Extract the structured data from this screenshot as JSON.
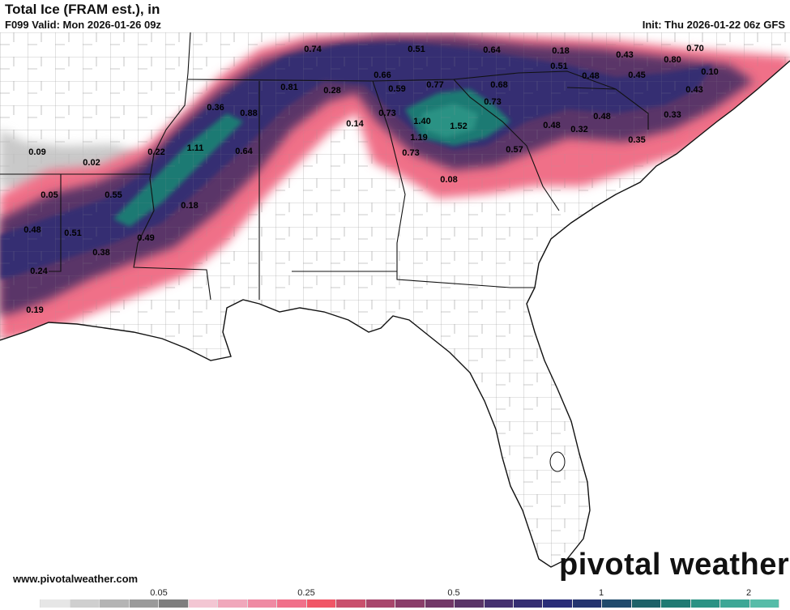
{
  "header": {
    "title": "Total Ice (FRAM est.), in",
    "valid": "F099 Valid: Mon 2026-01-26 09z",
    "init": "Init: Thu 2026-01-22 06z GFS"
  },
  "footer": {
    "url": "www.pivotalweather.com",
    "brand": "pivotal weather"
  },
  "legend": {
    "ticks": [
      "0.05",
      "0.25",
      "0.5",
      "1",
      "2"
    ],
    "colors": [
      "#ffffff",
      "#e6e6e6",
      "#cfcfcf",
      "#b4b4b4",
      "#9a9a9a",
      "#7e7e7e",
      "#f3c6d3",
      "#f0a7bb",
      "#ef8aa3",
      "#f0708a",
      "#f05667",
      "#c9506d",
      "#a8466c",
      "#8a3d6a",
      "#723868",
      "#5a3568",
      "#453170",
      "#352e72",
      "#292d78",
      "#24346f",
      "#1f4a6c",
      "#1d6269",
      "#1f7a73",
      "#2a9284",
      "#3da796",
      "#56bca8"
    ],
    "nodata_color": "#ffffff"
  },
  "map_values": [
    {
      "v": "0.74"
    },
    {
      "v": "0.51"
    },
    {
      "v": "0.64"
    },
    {
      "v": "0.18"
    },
    {
      "v": "0.43"
    },
    {
      "v": "0.70"
    },
    {
      "v": "0.80"
    },
    {
      "v": "0.10"
    },
    {
      "v": "0.51"
    },
    {
      "v": "0.66"
    },
    {
      "v": "0.77"
    },
    {
      "v": "0.68"
    },
    {
      "v": "0.48"
    },
    {
      "v": "0.45"
    },
    {
      "v": "0.43"
    },
    {
      "v": "0.81"
    },
    {
      "v": "0.28"
    },
    {
      "v": "0.59"
    },
    {
      "v": "0.73"
    },
    {
      "v": "0.36"
    },
    {
      "v": "0.88"
    },
    {
      "v": "0.73"
    },
    {
      "v": "1.40"
    },
    {
      "v": "1.52"
    },
    {
      "v": "0.14"
    },
    {
      "v": "1.19"
    },
    {
      "v": "0.48"
    },
    {
      "v": "0.32"
    },
    {
      "v": "0.48"
    },
    {
      "v": "0.33"
    },
    {
      "v": "1.11"
    },
    {
      "v": "0.64"
    },
    {
      "v": "0.09"
    },
    {
      "v": "0.22"
    },
    {
      "v": "0.73"
    },
    {
      "v": "0.57"
    },
    {
      "v": "0.35"
    },
    {
      "v": "0.02"
    },
    {
      "v": "0.08"
    },
    {
      "v": "0.05"
    },
    {
      "v": "0.55"
    },
    {
      "v": "0.18"
    },
    {
      "v": "0.48"
    },
    {
      "v": "0.51"
    },
    {
      "v": "0.49"
    },
    {
      "v": "0.38"
    },
    {
      "v": "0.24"
    },
    {
      "v": "0.19"
    }
  ]
}
